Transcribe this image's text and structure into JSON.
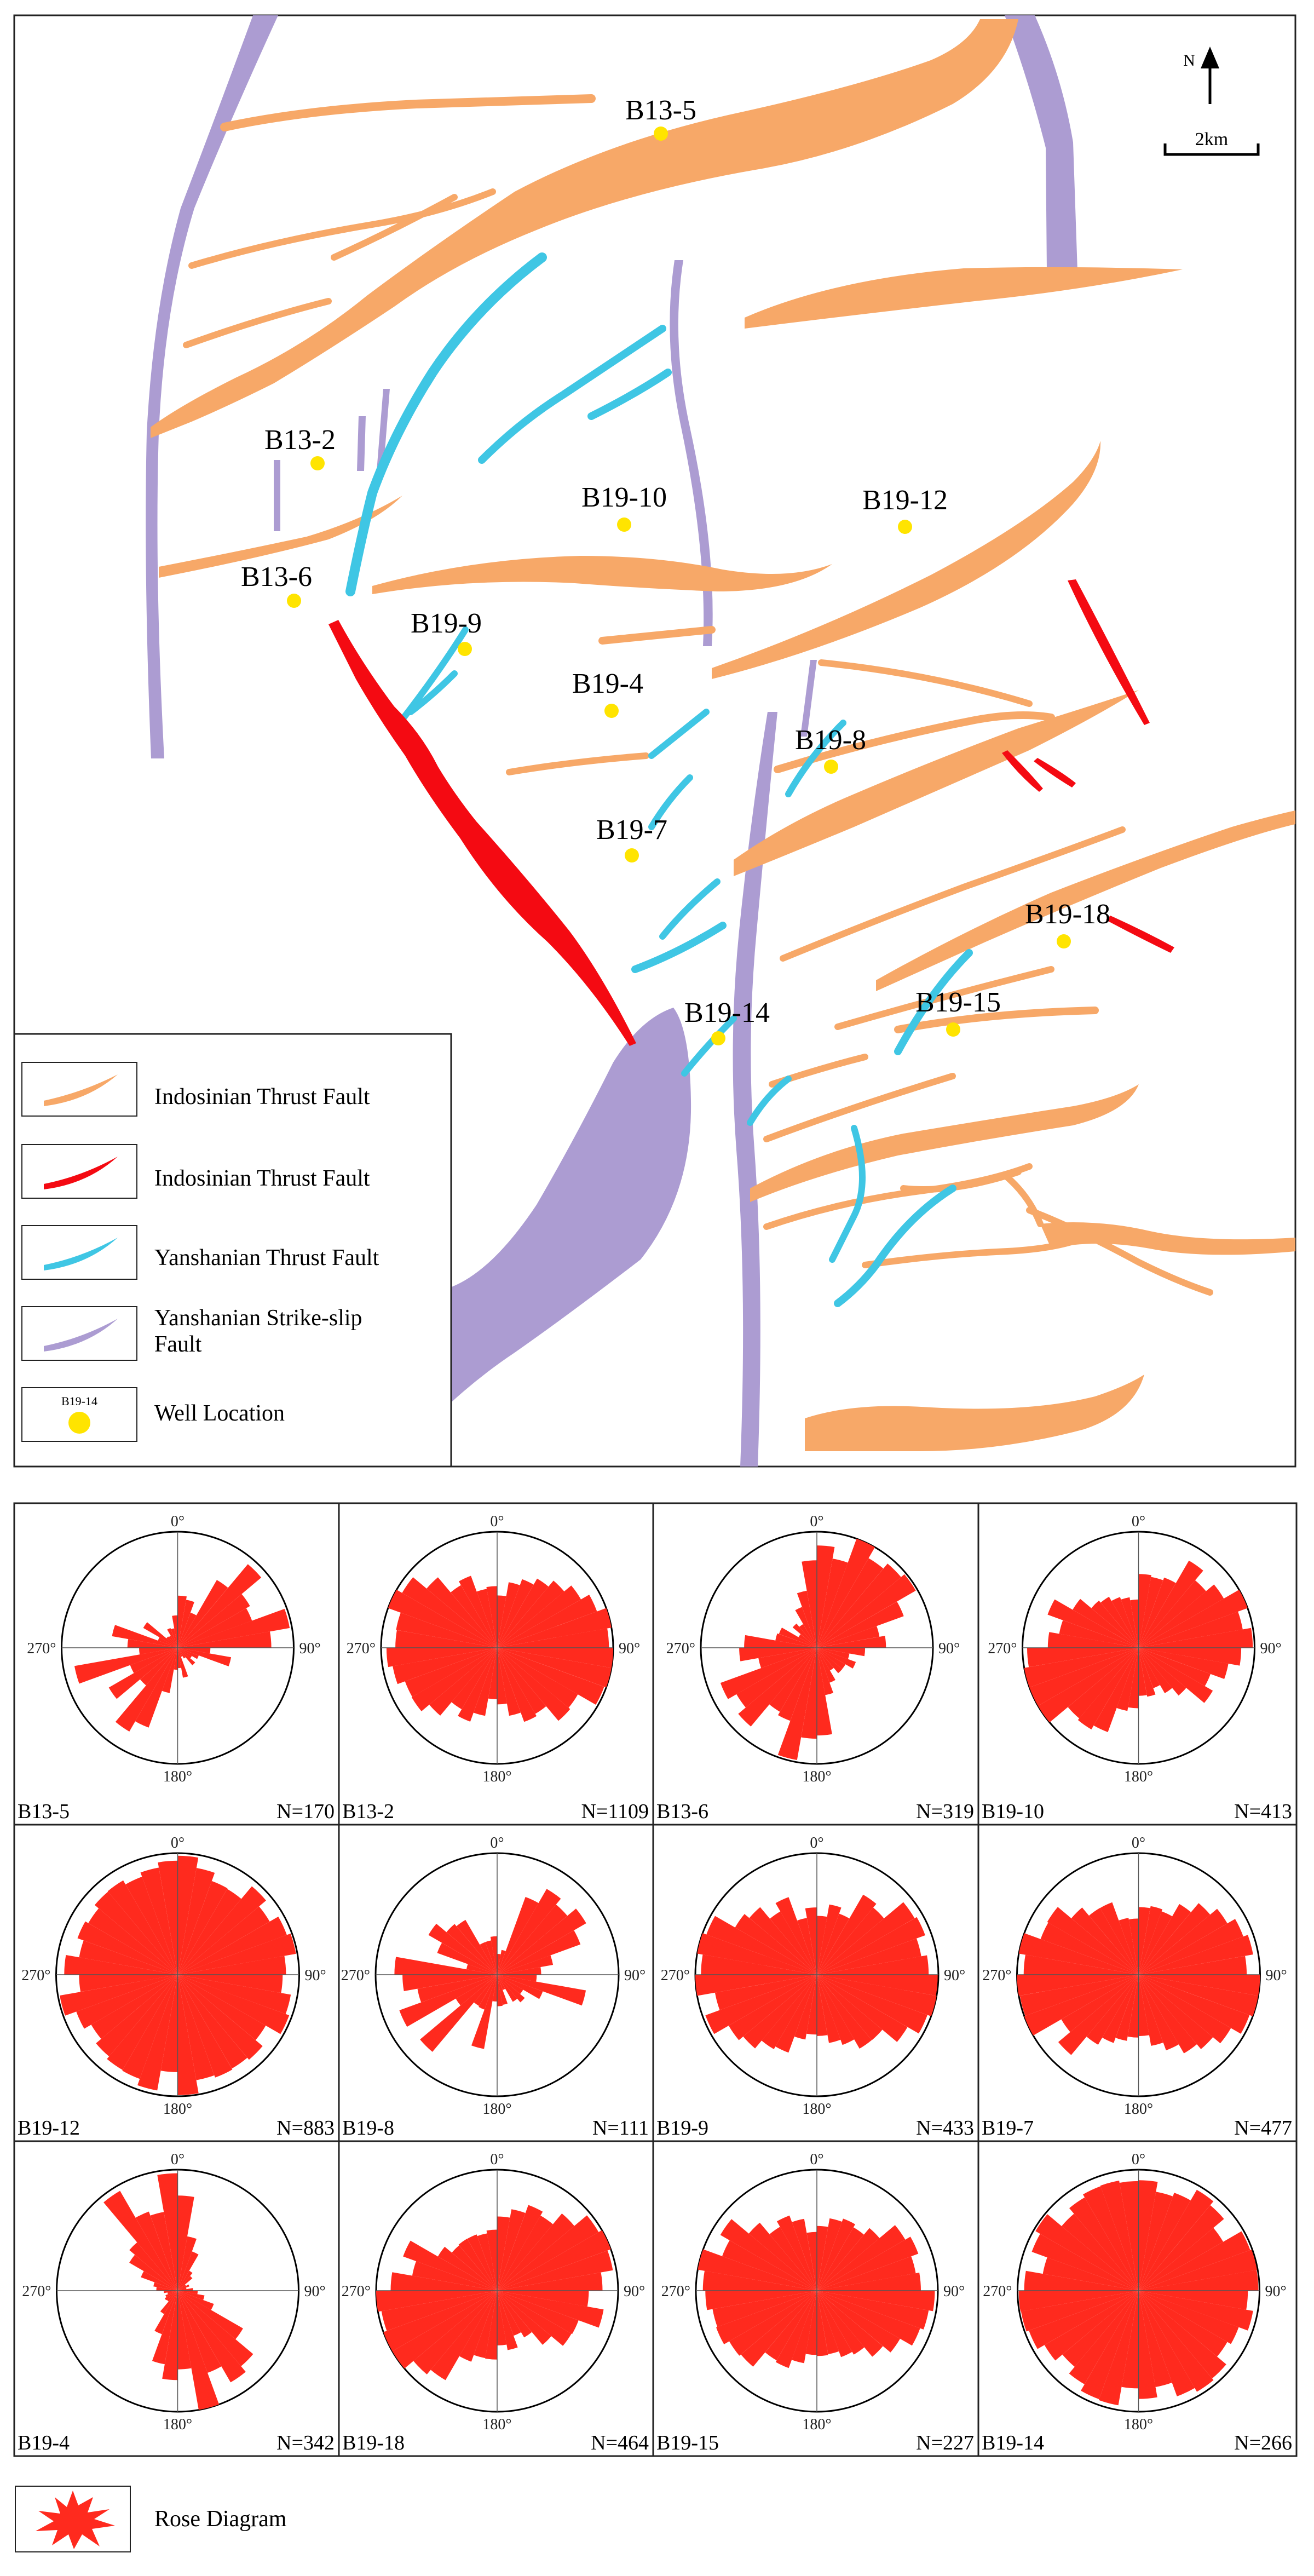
{
  "north_arrow": {
    "label": "N"
  },
  "scale_bar": {
    "label": "2km"
  },
  "colors": {
    "indosinian_orange": "#F7A868",
    "indosinian_red": "#F40A12",
    "yanshanian_cyan": "#3FC6E4",
    "strike_slip_purple": "#AC9CD2",
    "well": "#FFE400",
    "rose": "#FF2A1E"
  },
  "legend": {
    "items": [
      {
        "icon": "orange-fault-swatch-icon",
        "label": "Indosinian Thrust Fault"
      },
      {
        "icon": "red-fault-swatch-icon",
        "label": "Indosinian Thrust Fault"
      },
      {
        "icon": "cyan-fault-swatch-icon",
        "label": "Yanshanian Thrust Fault"
      },
      {
        "icon": "purple-fault-swatch-icon",
        "label": "Yanshanian Strike-slip Fault"
      },
      {
        "icon": "well-location-icon",
        "label": "Well Location",
        "sample": "B19-14"
      }
    ]
  },
  "wells": [
    {
      "name": "B13-5"
    },
    {
      "name": "B13-2"
    },
    {
      "name": "B13-6"
    },
    {
      "name": "B19-10"
    },
    {
      "name": "B19-12"
    },
    {
      "name": "B19-9"
    },
    {
      "name": "B19-4"
    },
    {
      "name": "B19-8"
    },
    {
      "name": "B19-7"
    },
    {
      "name": "B19-18"
    },
    {
      "name": "B19-15"
    },
    {
      "name": "B19-14"
    }
  ],
  "rose_axis_labels": {
    "north": "0°",
    "east": "90°",
    "south": "180°",
    "west": "270°"
  },
  "rose_diagrams": [
    {
      "well": "B13-5",
      "n": "N=170",
      "shape": "sparse-ne-sw"
    },
    {
      "well": "B13-2",
      "n": "N=1109",
      "shape": "ew-dominant"
    },
    {
      "well": "B13-6",
      "n": "N=319",
      "shape": "ne-sw-dominant"
    },
    {
      "well": "B19-10",
      "n": "N=413",
      "shape": "ene-wsw"
    },
    {
      "well": "B19-12",
      "n": "N=883",
      "shape": "uniform"
    },
    {
      "well": "B19-8",
      "n": "N=111",
      "shape": "sparse-mixed"
    },
    {
      "well": "B19-9",
      "n": "N=433",
      "shape": "ew-dominant"
    },
    {
      "well": "B19-7",
      "n": "N=477",
      "shape": "ew-dominant"
    },
    {
      "well": "B19-4",
      "n": "N=342",
      "shape": "nnw-sse"
    },
    {
      "well": "B19-18",
      "n": "N=464",
      "shape": "ene-wsw"
    },
    {
      "well": "B19-15",
      "n": "N=227",
      "shape": "ew-dominant"
    },
    {
      "well": "B19-14",
      "n": "N=266",
      "shape": "uniform"
    }
  ],
  "rose_legend": {
    "icon": "rose-diagram-icon",
    "label": "Rose Diagram"
  }
}
